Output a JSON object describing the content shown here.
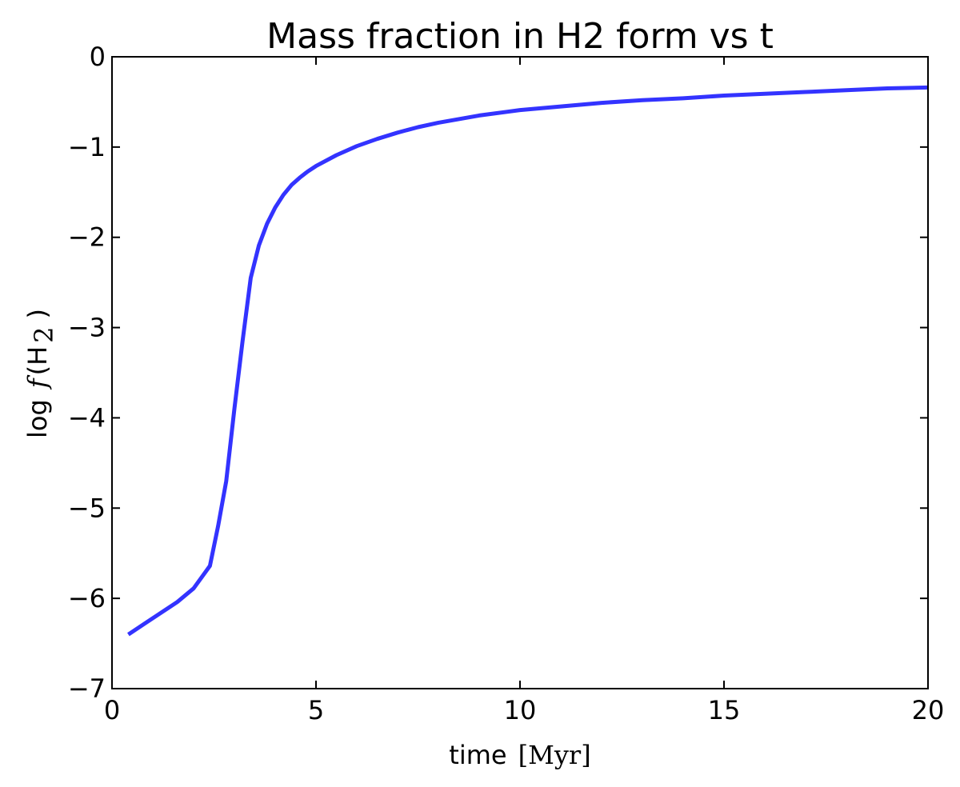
{
  "chart_data": {
    "type": "line",
    "title": "Mass fraction in H2 form vs t",
    "xlabel": {
      "prefix": "time",
      "unit": "[Myr]"
    },
    "ylabel": {
      "prefix": "log",
      "func": "f",
      "open": "(H",
      "sub": "2",
      "close": ")"
    },
    "xlim": [
      0,
      20
    ],
    "ylim": [
      -7,
      0
    ],
    "xticks": [
      0,
      5,
      10,
      15,
      20
    ],
    "yticks": [
      -7,
      -6,
      -5,
      -4,
      -3,
      -2,
      -1,
      0
    ],
    "xtick_labels": [
      "0",
      "5",
      "10",
      "15",
      "20"
    ],
    "ytick_labels": [
      "−7",
      "−6",
      "−5",
      "−4",
      "−3",
      "−2",
      "−1",
      "0"
    ],
    "grid": false,
    "line_color": "#3333ff",
    "series": [
      {
        "x": [
          0.4,
          0.8,
          1.2,
          1.6,
          2.0,
          2.4,
          2.6,
          2.8,
          3.0,
          3.2,
          3.4,
          3.6,
          3.8,
          4.0,
          4.2,
          4.4,
          4.6,
          4.8,
          5.0,
          5.5,
          6.0,
          6.5,
          7.0,
          7.5,
          8.0,
          9.0,
          10.0,
          11.0,
          12.0,
          13.0,
          14.0,
          15.0,
          16.0,
          17.0,
          18.0,
          19.0,
          20.0
        ],
        "y": [
          -6.4,
          -6.28,
          -6.16,
          -6.04,
          -5.89,
          -5.64,
          -5.2,
          -4.7,
          -3.9,
          -3.15,
          -2.45,
          -2.09,
          -1.85,
          -1.67,
          -1.53,
          -1.42,
          -1.34,
          -1.27,
          -1.21,
          -1.09,
          -0.99,
          -0.91,
          -0.84,
          -0.78,
          -0.73,
          -0.65,
          -0.59,
          -0.55,
          -0.51,
          -0.48,
          -0.46,
          -0.43,
          -0.41,
          -0.39,
          -0.37,
          -0.35,
          -0.34
        ]
      }
    ]
  }
}
